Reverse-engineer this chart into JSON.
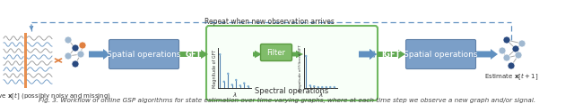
{
  "fig_width": 6.4,
  "fig_height": 1.17,
  "dpi": 100,
  "bg_color": "#ffffff",
  "caption": "Fig. 3. Workflow of online GSP algorithms for state estimation over time-varying graphs, where at each time step we observe a new graph and/or signal.",
  "caption_fontsize": 5.2,
  "colors": {
    "spatial_box": "#7B9FC8",
    "spatial_box_edge": "#6080A8",
    "filter_box": "#80BC6A",
    "filter_box_edge": "#5A9A40",
    "arrow_blue": "#6090C0",
    "arrow_green": "#60A850",
    "spectral_border": "#70B860",
    "dashed_color": "#6090C0",
    "node_dark": "#2A4A80",
    "node_mid": "#4A70A8",
    "node_light": "#A0B8D0",
    "node_orange": "#E08040",
    "wavy_blue": "#6090C0",
    "wavy_gray": "#909090",
    "bar_blue": "#7AAAD0",
    "bar_line_blue": "#5080B0",
    "text_dark": "#333333",
    "orange_bar": "#E89050"
  },
  "observe_label": "Observe $\\mathbf{x}[t]$ (possibly noisy and missing)",
  "spatial1_label": "Spatial operations",
  "gft_label": "GFT",
  "filter_label": "Filter",
  "spectral_label": "Spectral operations",
  "igft_label": "IGFT",
  "spatial2_label": "Spatial operations",
  "estimate_label": "Estimate $\\mathbf{x}[t+1]$",
  "repeat_label": "Repeat when new observation arrives"
}
